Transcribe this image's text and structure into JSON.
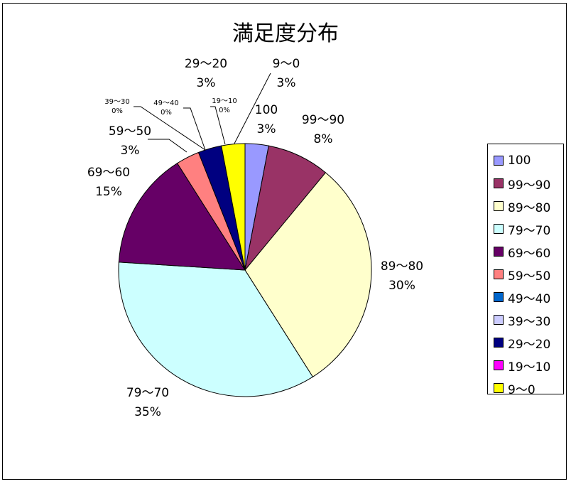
{
  "chart_data": {
    "type": "pie",
    "title": "満足度分布",
    "categories": [
      "100",
      "99〜90",
      "89〜80",
      "79〜70",
      "69〜60",
      "59〜50",
      "49〜40",
      "39〜30",
      "29〜20",
      "19〜10",
      "9〜0"
    ],
    "values": [
      3,
      8,
      30,
      35,
      15,
      3,
      0,
      0,
      3,
      0,
      3
    ],
    "percent_labels": [
      "3%",
      "8%",
      "30%",
      "35%",
      "15%",
      "3%",
      "0%",
      "0%",
      "3%",
      "0%",
      "3%"
    ],
    "colors": [
      "#9999FF",
      "#993366",
      "#FFFFCC",
      "#CCFFFF",
      "#660066",
      "#FF8080",
      "#0066CC",
      "#CCCCFF",
      "#000080",
      "#FF00FF",
      "#FFFF00"
    ],
    "legend_position": "right",
    "start_angle": "top, clockwise"
  }
}
